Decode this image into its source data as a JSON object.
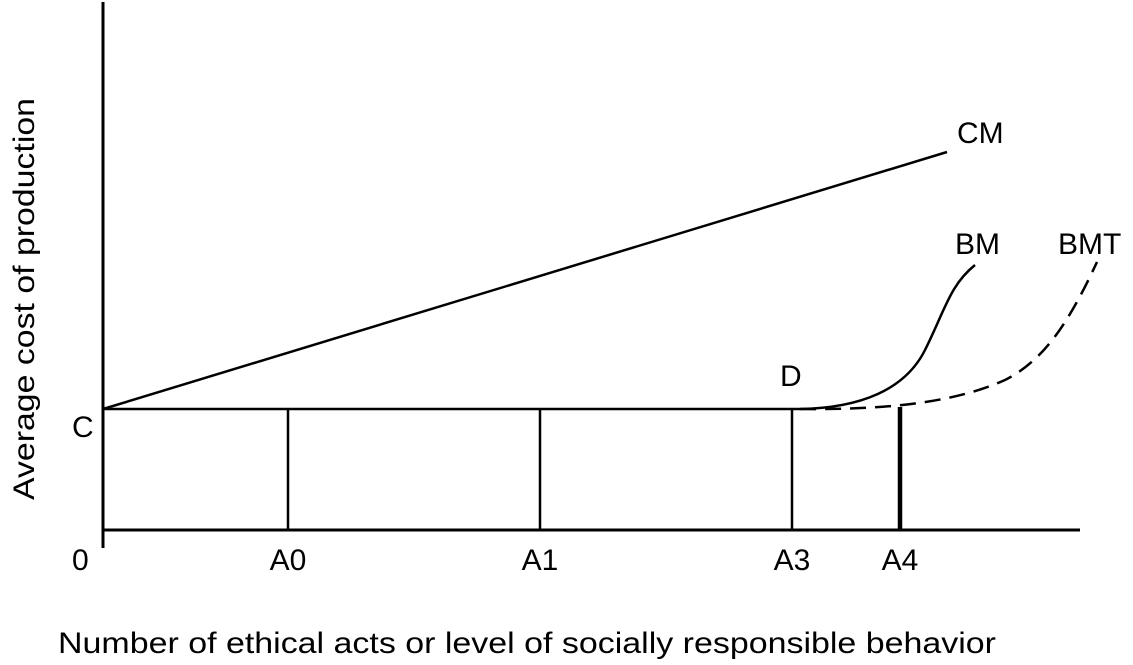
{
  "diagram": {
    "x_axis_title": "Number of ethical acts or level of socially responsible behavior",
    "y_axis_title": "Average cost of production",
    "origin_label": "0",
    "y_label_c": "C",
    "x_ticks": {
      "a0": "A0",
      "a1": "A1",
      "a3": "A3",
      "a4": "A4"
    },
    "curves": {
      "cm": "CM",
      "bm": "BM",
      "bmt": "BMT"
    },
    "point_d": "D",
    "colors": {
      "ink": "#000000",
      "background": "#ffffff"
    }
  }
}
